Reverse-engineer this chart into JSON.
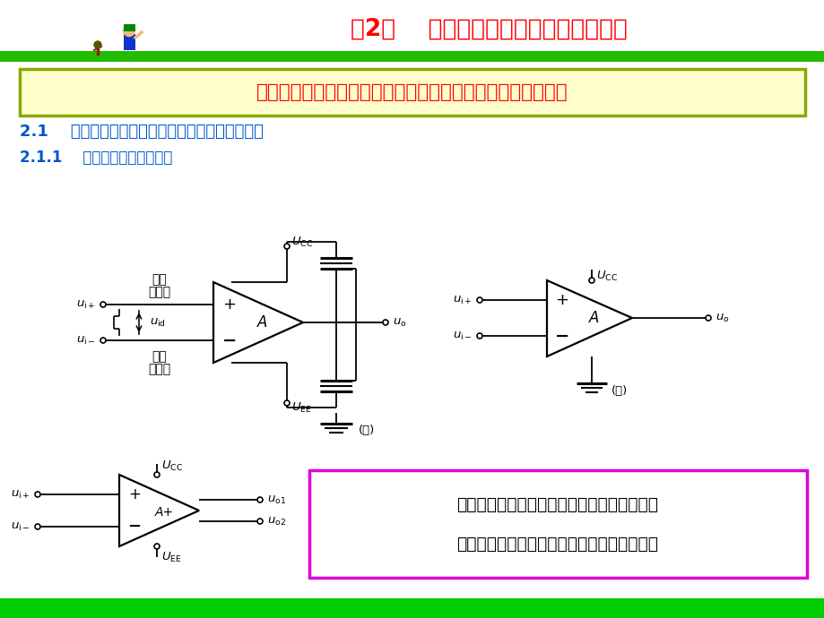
{
  "bg_color": "#ffffff",
  "slide_bg": "#ffffff",
  "header_bg": "#ffffff",
  "title_text": "第2章    集成运算放大器的线性应用基础",
  "title_color": "#ff0000",
  "grass_color": "#22bb00",
  "highlight_box_text": "集成运算放大器是将电子器件和电路集成在硅片上的放大器。",
  "highlight_box_color": "#ff0000",
  "highlight_box_bg": "#ffffcc",
  "highlight_box_border": "#88aa00",
  "section21_text": "2.1    集成运算放大器的符号、模型和电压传输特性",
  "section211_text": "2.1.1    集成运算放大器的符号",
  "section_color": "#0055cc",
  "circuit_color": "#000000",
  "note_box_text1": "同相输入端的输入信号与输出信号相位相同；",
  "note_box_text2": "反相输入端的输入信号与输出信号相位相反。",
  "note_box_bg": "#ffffff",
  "note_box_border": "#dd00dd",
  "bottom_bar_color": "#00cc00"
}
